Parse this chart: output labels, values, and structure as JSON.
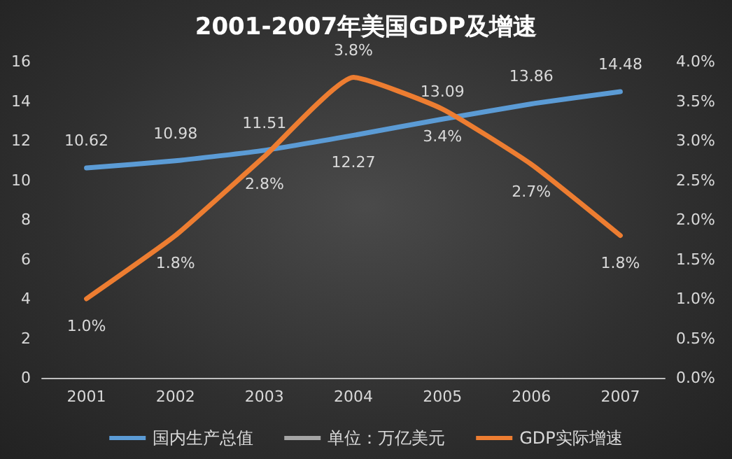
{
  "chart_data": {
    "type": "line",
    "title": "2001-2007年美国GDP及增速",
    "categories": [
      "2001",
      "2002",
      "2003",
      "2004",
      "2005",
      "2006",
      "2007"
    ],
    "series": [
      {
        "name": "国内生产总值",
        "color": "#5b9bd5",
        "values": [
          10.62,
          10.98,
          11.51,
          12.27,
          13.09,
          13.86,
          14.48
        ],
        "value_labels": [
          "10.62",
          "10.98",
          "11.51",
          "12.27",
          "13.09",
          "13.86",
          "14.48"
        ]
      },
      {
        "name": "单位：万亿美元",
        "color": "#a5a5a5",
        "values": [
          null,
          null,
          null,
          null,
          null,
          null,
          null
        ]
      },
      {
        "name": "GDP实际增速",
        "color": "#ed7d31",
        "axis": "y2",
        "values": [
          1.0,
          1.8,
          2.8,
          3.8,
          3.4,
          2.7,
          1.8
        ],
        "value_labels": [
          "1.0%",
          "1.8%",
          "2.8%",
          "3.8%",
          "3.4%",
          "2.7%",
          "1.8%"
        ]
      }
    ],
    "ylim": [
      0,
      16
    ],
    "yticks": [
      0,
      2,
      4,
      6,
      8,
      10,
      12,
      14,
      16
    ],
    "y2lim": [
      0,
      4
    ],
    "y2ticks": [
      {
        "value": 0,
        "label": "0.0%"
      },
      {
        "value": 0.5,
        "label": "0.5%"
      },
      {
        "value": 1,
        "label": "1.0%"
      },
      {
        "value": 1.5,
        "label": "1.5%"
      },
      {
        "value": 2,
        "label": "2.0%"
      },
      {
        "value": 2.5,
        "label": "2.5%"
      },
      {
        "value": 3,
        "label": "3.0%"
      },
      {
        "value": 3.5,
        "label": "3.5%"
      },
      {
        "value": 4,
        "label": "4.0%"
      }
    ],
    "grid": false,
    "legend": "bottom",
    "marker": "none",
    "line_style": "solid"
  }
}
